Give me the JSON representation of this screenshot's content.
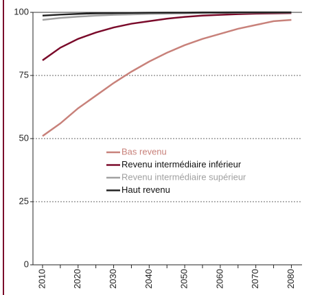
{
  "chart_data": {
    "type": "line",
    "x": [
      2010,
      2015,
      2020,
      2025,
      2030,
      2035,
      2040,
      2045,
      2050,
      2055,
      2060,
      2065,
      2070,
      2075,
      2080
    ],
    "series": [
      {
        "name": "Bas revenu",
        "color": "#c8817a",
        "values": [
          51,
          56,
          62,
          67,
          72,
          76.5,
          80.5,
          84,
          87,
          89.5,
          91.5,
          93.5,
          95,
          96.5,
          97
        ]
      },
      {
        "name": "Revenu intermédiaire inférieur",
        "color": "#7a0a2a",
        "values": [
          81,
          86,
          89.5,
          92,
          94,
          95.5,
          96.5,
          97.5,
          98.2,
          98.7,
          99,
          99.3,
          99.5,
          99.6,
          99.7
        ]
      },
      {
        "name": "Revenu intermédiaire supérieur",
        "color": "#a0a0a0",
        "values": [
          97,
          97.8,
          98.3,
          98.7,
          99,
          99.2,
          99.4,
          99.5,
          99.6,
          99.7,
          99.8,
          99.8,
          99.9,
          99.9,
          99.9
        ]
      },
      {
        "name": "Haut revenu",
        "color": "#222222",
        "values": [
          98.7,
          99.1,
          99.4,
          99.6,
          99.7,
          99.8,
          99.85,
          99.9,
          99.9,
          99.95,
          99.95,
          100,
          100,
          100,
          100
        ]
      }
    ],
    "xlim": [
      2007.3,
      2083
    ],
    "xticks": [
      2010,
      2020,
      2030,
      2040,
      2050,
      2060,
      2070,
      2080
    ],
    "ylim": [
      0,
      100
    ],
    "yticks": [
      0,
      25,
      50,
      75,
      100
    ],
    "grid": true
  }
}
